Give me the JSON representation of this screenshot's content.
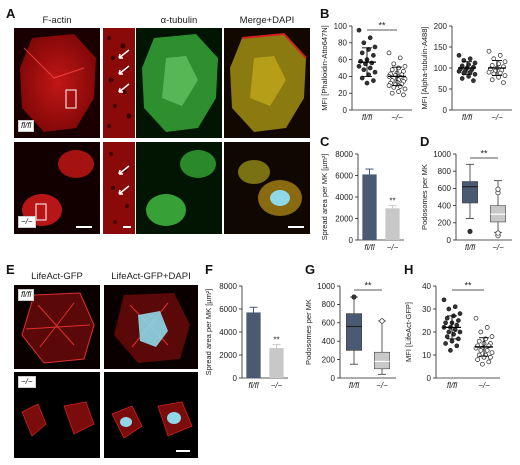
{
  "panels": {
    "A": {
      "label": "A",
      "columns": [
        "F-actin",
        "α-tubulin",
        "Merge+DAPI"
      ],
      "rows": [
        "fl/fl",
        "−/−"
      ]
    },
    "B": {
      "label": "B"
    },
    "C": {
      "label": "C"
    },
    "D": {
      "label": "D"
    },
    "E": {
      "label": "E",
      "columns": [
        "LifeAct-GFP",
        "LifeAct-GFP+DAPI"
      ],
      "rows": [
        "fl/fl",
        "−/−"
      ]
    },
    "F": {
      "label": "F"
    },
    "G": {
      "label": "G"
    },
    "H": {
      "label": "H"
    }
  },
  "colors": {
    "red": "#d11a1a",
    "green": "#2fa32f",
    "dapi": "#8fd8e8",
    "dark_bar": "#4a5a72",
    "light_bar": "#c8c8c8"
  },
  "chart_data": [
    {
      "panel": "B-left",
      "type": "scatter",
      "ylabel": "MFI [Phalloidin-Atto647N]",
      "categories": [
        "fl/fl",
        "−/−"
      ],
      "yticks": [
        0,
        20,
        40,
        60,
        80,
        100
      ],
      "ylim": [
        0,
        100
      ],
      "significance": "**",
      "series": [
        {
          "values": [
            95,
            86,
            80,
            75,
            72,
            68,
            65,
            60,
            58,
            56,
            55,
            52,
            50,
            48,
            45,
            42,
            38,
            35,
            32
          ],
          "mean": 57,
          "sd": 17
        },
        {
          "values": [
            68,
            62,
            55,
            52,
            50,
            48,
            46,
            44,
            43,
            42,
            41,
            40,
            39,
            38,
            37,
            36,
            35,
            34,
            33,
            32,
            31,
            30,
            29,
            28,
            27,
            25,
            22,
            20,
            18
          ],
          "mean": 40,
          "sd": 11
        }
      ]
    },
    {
      "panel": "B-right",
      "type": "scatter",
      "ylabel": "MFI [Alpha-tubulin-A488]",
      "categories": [
        "fl/fl",
        "−/−"
      ],
      "yticks": [
        0,
        50,
        100,
        150,
        200
      ],
      "ylim": [
        0,
        200
      ],
      "series": [
        {
          "values": [
            130,
            122,
            118,
            112,
            108,
            105,
            102,
            100,
            98,
            96,
            94,
            92,
            90,
            88,
            85,
            80,
            75,
            70
          ],
          "mean": 100,
          "sd": 15
        },
        {
          "values": [
            140,
            130,
            122,
            115,
            110,
            106,
            103,
            100,
            98,
            95,
            93,
            90,
            88,
            86,
            82,
            78,
            72,
            65
          ],
          "mean": 100,
          "sd": 18
        }
      ]
    },
    {
      "panel": "C",
      "type": "bar",
      "ylabel": "Spread area per MK [µm²]",
      "categories": [
        "fl/fl",
        "−/−"
      ],
      "values": [
        6100,
        2950
      ],
      "errors": [
        500,
        250
      ],
      "yticks": [
        0,
        2000,
        4000,
        6000,
        8000
      ],
      "ylim": [
        0,
        8000
      ],
      "significance": [
        "",
        "**"
      ]
    },
    {
      "panel": "D",
      "type": "box",
      "ylabel": "Podosomes per MK",
      "categories": [
        "fl/fl",
        "−/−"
      ],
      "yticks": [
        0,
        200,
        400,
        600,
        800,
        1000
      ],
      "ylim": [
        0,
        1000
      ],
      "significance": "**",
      "series": [
        {
          "whisker_low": 250,
          "q1": 430,
          "median": 620,
          "q3": 680,
          "whisker_high": 880,
          "outliers": [
            100
          ]
        },
        {
          "whisker_low": 90,
          "q1": 210,
          "median": 300,
          "q3": 400,
          "whisker_high": 690,
          "outliers": [
            50,
            80,
            550,
            590
          ]
        }
      ]
    },
    {
      "panel": "F",
      "type": "bar",
      "ylabel": "Spread area per MK [µm²]",
      "categories": [
        "fl/fl",
        "−/−"
      ],
      "values": [
        5700,
        2600
      ],
      "errors": [
        450,
        300
      ],
      "yticks": [
        0,
        2000,
        4000,
        6000,
        8000
      ],
      "ylim": [
        0,
        8000
      ],
      "significance": [
        "",
        "**"
      ]
    },
    {
      "panel": "G",
      "type": "box",
      "ylabel": "Podosomes per MK",
      "categories": [
        "fl/fl",
        "−/−"
      ],
      "yticks": [
        0,
        200,
        400,
        600,
        800,
        1000
      ],
      "ylim": [
        0,
        1000
      ],
      "significance": "**",
      "series": [
        {
          "whisker_low": 150,
          "q1": 300,
          "median": 560,
          "q3": 700,
          "whisker_high": 880,
          "outliers": [
            880
          ]
        },
        {
          "whisker_low": 40,
          "q1": 100,
          "median": 180,
          "q3": 280,
          "whisker_high": 620,
          "outliers": [
            620
          ]
        }
      ]
    },
    {
      "panel": "H",
      "type": "scatter",
      "ylabel": "MFI [LifeAct-GFP]",
      "categories": [
        "fl/fl",
        "−/−"
      ],
      "yticks": [
        0,
        10,
        20,
        30,
        40
      ],
      "ylim": [
        0,
        40
      ],
      "significance": "**",
      "series": [
        {
          "values": [
            34,
            31,
            30,
            28,
            27,
            26,
            25,
            24,
            24,
            23,
            22,
            22,
            21,
            20,
            20,
            19,
            18,
            17,
            16,
            15,
            14,
            12
          ],
          "mean": 22,
          "sd": 5
        },
        {
          "values": [
            26,
            22,
            20,
            18,
            17,
            16,
            15,
            15,
            14,
            14,
            13,
            13,
            12,
            12,
            11,
            10,
            10,
            9,
            9,
            8,
            7,
            6
          ],
          "mean": 13.5,
          "sd": 4
        }
      ]
    }
  ]
}
